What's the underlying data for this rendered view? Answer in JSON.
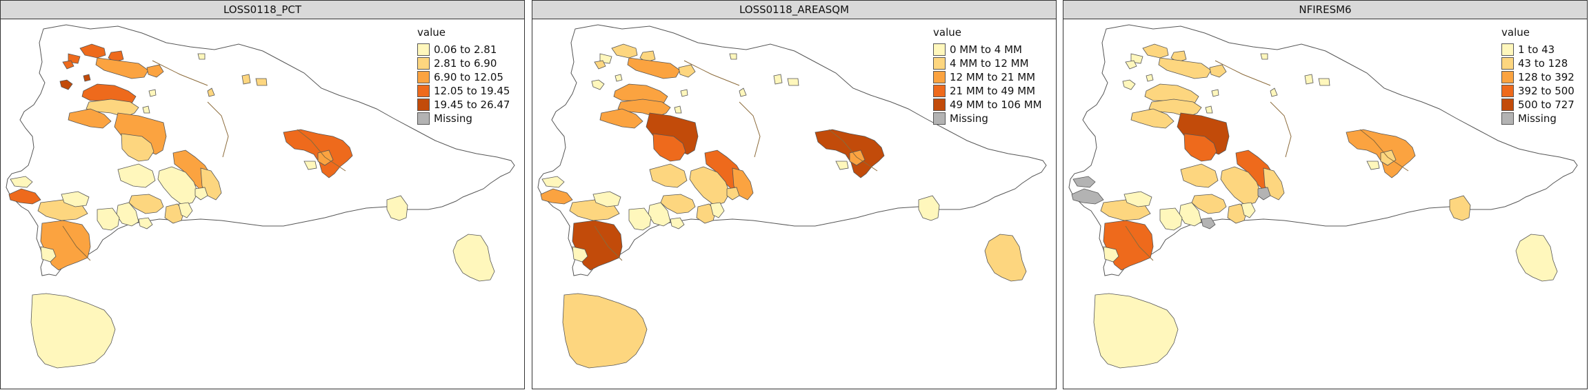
{
  "panels": [
    {
      "title": "LOSS0118_PCT",
      "legend_title": "value",
      "legend": [
        {
          "label": "0.06 to 2.81",
          "color": "#fff7bc"
        },
        {
          "label": "2.81 to 6.90",
          "color": "#fdd67f"
        },
        {
          "label": "6.90 to 12.05",
          "color": "#fba340"
        },
        {
          "label": "12.05 to 19.45",
          "color": "#ee6a1c"
        },
        {
          "label": "19.45 to 26.47",
          "color": "#c24b0a"
        },
        {
          "label": "Missing",
          "color": "#b3b3b3"
        }
      ]
    },
    {
      "title": "LOSS0118_AREASQM",
      "legend_title": "value",
      "legend": [
        {
          "label": "0 MM to 4 MM",
          "color": "#fff7bc"
        },
        {
          "label": "4 MM to 12 MM",
          "color": "#fdd67f"
        },
        {
          "label": "12 MM to 21 MM",
          "color": "#fba340"
        },
        {
          "label": "21 MM to 49 MM",
          "color": "#ee6a1c"
        },
        {
          "label": "49 MM to 106 MM",
          "color": "#c24b0a"
        },
        {
          "label": "Missing",
          "color": "#b3b3b3"
        }
      ]
    },
    {
      "title": "NFIRESM6",
      "legend_title": "value",
      "legend": [
        {
          "label": "1 to 43",
          "color": "#fff7bc"
        },
        {
          "label": "43 to 128",
          "color": "#fdd67f"
        },
        {
          "label": "128 to 392",
          "color": "#fba340"
        },
        {
          "label": "392 to 500",
          "color": "#ee6a1c"
        },
        {
          "label": "500 to 727",
          "color": "#c24b0a"
        },
        {
          "label": "Missing",
          "color": "#b3b3b3"
        }
      ]
    }
  ]
}
